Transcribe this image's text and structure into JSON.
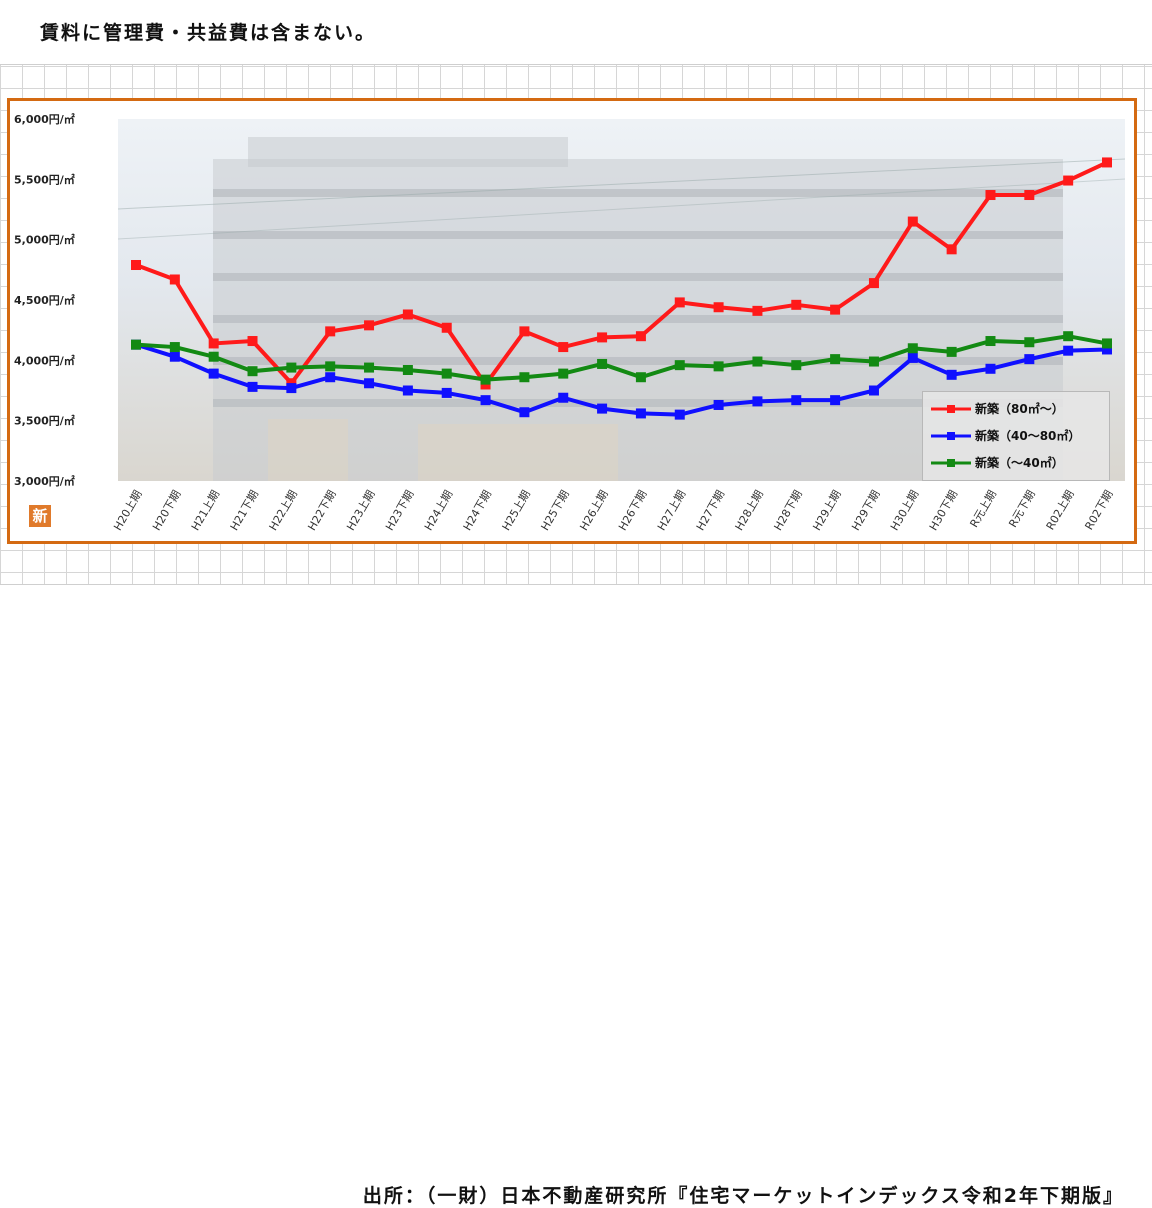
{
  "header": {
    "note": "賃料に管理費・共益費は含まない。"
  },
  "footer": {
    "source": "出所：（一財）日本不動産研究所『住宅マーケットインデックス令和2年下期版』"
  },
  "logo": {
    "glyph": "新"
  },
  "chart_data": {
    "type": "line",
    "title": "",
    "xlabel": "",
    "ylabel": "",
    "ylim": [
      3000,
      6000
    ],
    "yticks": [
      3000,
      3500,
      4000,
      4500,
      5000,
      5500,
      6000
    ],
    "ytick_labels": [
      "3,000円/㎡",
      "3,500円/㎡",
      "4,000円/㎡",
      "4,500円/㎡",
      "5,000円/㎡",
      "5,500円/㎡",
      "6,000円/㎡"
    ],
    "categories": [
      "H20上期",
      "H20下期",
      "H21上期",
      "H21下期",
      "H22上期",
      "H22下期",
      "H23上期",
      "H23下期",
      "H24上期",
      "H24下期",
      "H25上期",
      "H25下期",
      "H26上期",
      "H26下期",
      "H27上期",
      "H27下期",
      "H28上期",
      "H28下期",
      "H29上期",
      "H29下期",
      "H30上期",
      "H30下期",
      "R元上期",
      "R元下期",
      "R02上期",
      "R02下期"
    ],
    "legend_position": "bottom-right",
    "series": [
      {
        "name": "新築（80㎡～）",
        "color": "#ff1a1a",
        "values": [
          4790,
          4670,
          4140,
          4160,
          3810,
          4240,
          4290,
          4380,
          4270,
          3800,
          4240,
          4110,
          4190,
          4200,
          4480,
          4440,
          4410,
          4460,
          4420,
          4640,
          5150,
          4920,
          5370,
          5370,
          5490,
          5640
        ]
      },
      {
        "name": "新築（40～80㎡）",
        "color": "#1010ff",
        "values": [
          4130,
          4030,
          3890,
          3780,
          3770,
          3860,
          3810,
          3750,
          3730,
          3670,
          3570,
          3690,
          3600,
          3560,
          3550,
          3630,
          3660,
          3670,
          3670,
          3750,
          4020,
          3880,
          3930,
          4010,
          4080,
          4090
        ]
      },
      {
        "name": "新築（～40㎡）",
        "color": "#138a13",
        "values": [
          4130,
          4110,
          4030,
          3910,
          3940,
          3950,
          3940,
          3920,
          3890,
          3840,
          3860,
          3890,
          3970,
          3860,
          3960,
          3950,
          3990,
          3960,
          4010,
          3990,
          4100,
          4070,
          4160,
          4150,
          4200,
          4140
        ]
      }
    ]
  }
}
